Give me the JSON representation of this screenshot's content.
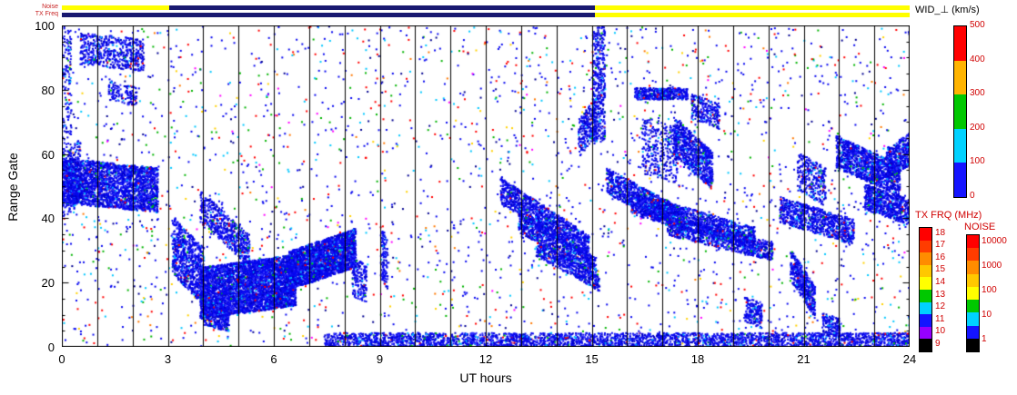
{
  "labels": {
    "xlabel": "UT hours",
    "ylabel": "Range Gate",
    "wid_title": "WID_⊥ (km/s)",
    "tx_title": "TX FRQ (MHz)",
    "noise_title": "NOISE",
    "strip_noise": "Noise",
    "strip_txfreq": "TX Freq"
  },
  "wid_colorbar": {
    "tick_labels": [
      "500",
      "400",
      "300",
      "200",
      "100",
      "0"
    ],
    "segment_colors_top_to_bottom": [
      "#ff0000",
      "#ffb400",
      "#00c800",
      "#00d2ff",
      "#1414ff"
    ]
  },
  "tx_colorbar": {
    "tick_labels": [
      "18",
      "17",
      "16",
      "15",
      "14",
      "13",
      "12",
      "11",
      "10",
      "9"
    ],
    "segment_colors_top_to_bottom": [
      "#ff0000",
      "#ff3c00",
      "#ff8c00",
      "#ffc800",
      "#ffff00",
      "#00c800",
      "#00d2ff",
      "#1414ff",
      "#9600ff",
      "#000000"
    ]
  },
  "noise_colorbar": {
    "tick_labels": [
      "10000",
      "1000",
      "100",
      "10",
      "1"
    ],
    "segment_colors_top_to_bottom": [
      "#ff0000",
      "#ff3c00",
      "#ff8c00",
      "#ffc800",
      "#ffff00",
      "#00c800",
      "#00d2ff",
      "#1414ff",
      "#000000"
    ]
  },
  "strips": {
    "noise_strip": [
      {
        "start": 0,
        "end": 3.05,
        "color": "#ffff00"
      },
      {
        "start": 3.05,
        "end": 15.1,
        "color": "#191970"
      },
      {
        "start": 15.1,
        "end": 24,
        "color": "#ffff00"
      }
    ],
    "txfreq_strip": [
      {
        "start": 0,
        "end": 15.1,
        "color": "#191970"
      },
      {
        "start": 15.1,
        "end": 24,
        "color": "#ffff00"
      }
    ]
  },
  "chart_data": {
    "type": "scatter",
    "xlabel": "UT hours",
    "ylabel": "Range Gate",
    "xlim": [
      0,
      24
    ],
    "ylim": [
      0,
      100
    ],
    "x_ticks": [
      "0",
      "3",
      "6",
      "9",
      "12",
      "15",
      "18",
      "21",
      "24"
    ],
    "y_ticks": [
      "0",
      "20",
      "40",
      "60",
      "80",
      "100"
    ],
    "hour_gridlines": true,
    "point_size": 2,
    "background_scatter": {
      "count": 2600,
      "palette": [
        [
          "#0808f0",
          0.5
        ],
        [
          "#ff0000",
          0.12
        ],
        [
          "#00b400",
          0.09
        ],
        [
          "#00c8ff",
          0.12
        ],
        [
          "#ffd200",
          0.04
        ],
        [
          "#ff00ff",
          0.02
        ],
        [
          "#ff7800",
          0.03
        ],
        [
          "#000090",
          0.08
        ]
      ]
    },
    "cluster_palette": [
      [
        "#0808f0",
        0.62
      ],
      [
        "#0000c8",
        0.2
      ],
      [
        "#3232ff",
        0.1
      ],
      [
        "#00b4ff",
        0.05
      ],
      [
        "#00c800",
        0.015
      ],
      [
        "#ff0000",
        0.015
      ]
    ],
    "clusters": [
      {
        "h0": 0.0,
        "h1": 2.7,
        "g0": 52,
        "g1": 49,
        "t": 7,
        "n": 2600
      },
      {
        "h0": 0.0,
        "h1": 0.5,
        "g0": 50,
        "g1": 55,
        "t": 10,
        "n": 300
      },
      {
        "h0": 0.0,
        "h1": 0.25,
        "g0": 80,
        "g1": 80,
        "t": 20,
        "n": 150
      },
      {
        "h0": 0.5,
        "h1": 2.3,
        "g0": 93,
        "g1": 91,
        "t": 5,
        "n": 550
      },
      {
        "h0": 1.3,
        "h1": 2.1,
        "g0": 80,
        "g1": 78,
        "t": 3,
        "n": 130
      },
      {
        "h0": 3.1,
        "h1": 4.0,
        "g0": 32,
        "g1": 22,
        "t": 9,
        "n": 800
      },
      {
        "h0": 3.9,
        "h1": 5.3,
        "g0": 44,
        "g1": 30,
        "t": 5,
        "n": 600
      },
      {
        "h0": 3.9,
        "h1": 6.6,
        "g0": 17,
        "g1": 21,
        "t": 8,
        "n": 4200
      },
      {
        "h0": 6.4,
        "h1": 8.3,
        "g0": 24,
        "g1": 31,
        "t": 6,
        "n": 2600
      },
      {
        "h0": 4.0,
        "h1": 4.7,
        "g0": 11,
        "g1": 9,
        "t": 4,
        "n": 350
      },
      {
        "h0": 7.4,
        "h1": 24.0,
        "g0": 2,
        "g1": 2,
        "t": 2.6,
        "n": 3800
      },
      {
        "h0": 12.4,
        "h1": 14.9,
        "g0": 49,
        "g1": 31,
        "t": 4,
        "n": 1300
      },
      {
        "h0": 12.9,
        "h1": 15.1,
        "g0": 39,
        "g1": 25,
        "t": 3,
        "n": 800
      },
      {
        "h0": 13.4,
        "h1": 15.2,
        "g0": 31,
        "g1": 20,
        "t": 2.5,
        "n": 500
      },
      {
        "h0": 15.4,
        "h1": 17.6,
        "g0": 52,
        "g1": 39,
        "t": 4,
        "n": 1000
      },
      {
        "h0": 16.1,
        "h1": 19.6,
        "g0": 45,
        "g1": 34,
        "t": 3.5,
        "n": 1300
      },
      {
        "h0": 17.1,
        "h1": 20.1,
        "g0": 38,
        "g1": 30,
        "t": 3,
        "n": 900
      },
      {
        "h0": 16.2,
        "h1": 17.7,
        "g0": 79,
        "g1": 79,
        "t": 1.8,
        "n": 450
      },
      {
        "h0": 17.3,
        "h1": 18.4,
        "g0": 66,
        "g1": 55,
        "t": 6,
        "n": 800
      },
      {
        "h0": 16.4,
        "h1": 17.4,
        "g0": 63,
        "g1": 60,
        "t": 9,
        "n": 350
      },
      {
        "h0": 20.3,
        "h1": 22.4,
        "g0": 43,
        "g1": 36,
        "t": 4,
        "n": 900
      },
      {
        "h0": 20.6,
        "h1": 21.3,
        "g0": 26,
        "g1": 14,
        "t": 5,
        "n": 450
      },
      {
        "h0": 21.9,
        "h1": 23.7,
        "g0": 61,
        "g1": 52,
        "t": 5,
        "n": 1300
      },
      {
        "h0": 22.7,
        "h1": 24.0,
        "g0": 47,
        "g1": 42,
        "t": 4,
        "n": 700
      },
      {
        "h0": 23.3,
        "h1": 24.0,
        "g0": 57,
        "g1": 62,
        "t": 5,
        "n": 400
      },
      {
        "h0": 15.0,
        "h1": 15.35,
        "g0": 82,
        "g1": 82,
        "t": 18,
        "n": 450
      },
      {
        "h0": 14.6,
        "h1": 15.1,
        "g0": 65,
        "g1": 72,
        "t": 6,
        "n": 250
      },
      {
        "h0": 8.2,
        "h1": 8.6,
        "g0": 22,
        "g1": 20,
        "t": 6,
        "n": 180
      },
      {
        "h0": 17.8,
        "h1": 18.6,
        "g0": 75,
        "g1": 72,
        "t": 4,
        "n": 250
      },
      {
        "h0": 20.8,
        "h1": 21.6,
        "g0": 55,
        "g1": 50,
        "t": 6,
        "n": 300
      },
      {
        "h0": 19.3,
        "h1": 19.8,
        "g0": 12,
        "g1": 10,
        "t": 4,
        "n": 180
      },
      {
        "h0": 21.5,
        "h1": 22.0,
        "g0": 8,
        "g1": 6,
        "t": 3,
        "n": 150
      },
      {
        "h0": 9.0,
        "h1": 9.2,
        "g0": 30,
        "g1": 26,
        "t": 8,
        "n": 120
      }
    ]
  }
}
